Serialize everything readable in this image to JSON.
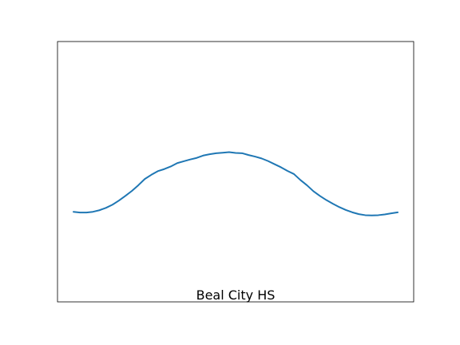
{
  "chart_data": {
    "type": "line",
    "title": "",
    "xlabel": "",
    "ylabel": "",
    "caption": "Beal City HS",
    "x_ticks_visible": false,
    "y_ticks_visible": false,
    "grid": false,
    "legend": "none",
    "xlim": [
      0,
      1
    ],
    "ylim": [
      0,
      1
    ],
    "series": [
      {
        "color": "#1f77b4",
        "x": [
          0.0,
          0.02,
          0.04,
          0.06,
          0.08,
          0.1,
          0.12,
          0.14,
          0.16,
          0.18,
          0.2,
          0.22,
          0.24,
          0.26,
          0.28,
          0.3,
          0.32,
          0.34,
          0.36,
          0.38,
          0.4,
          0.42,
          0.44,
          0.46,
          0.48,
          0.5,
          0.52,
          0.54,
          0.56,
          0.58,
          0.6,
          0.62,
          0.64,
          0.66,
          0.68,
          0.7,
          0.72,
          0.74,
          0.76,
          0.78,
          0.8,
          0.82,
          0.84,
          0.86,
          0.88,
          0.9,
          0.92,
          0.94,
          0.96,
          0.98,
          1.0
        ],
        "y": [
          0.346,
          0.343,
          0.343,
          0.346,
          0.352,
          0.361,
          0.373,
          0.389,
          0.407,
          0.426,
          0.448,
          0.472,
          0.488,
          0.502,
          0.51,
          0.52,
          0.533,
          0.54,
          0.547,
          0.553,
          0.562,
          0.567,
          0.571,
          0.573,
          0.575,
          0.572,
          0.571,
          0.564,
          0.558,
          0.551,
          0.541,
          0.529,
          0.517,
          0.503,
          0.491,
          0.468,
          0.448,
          0.425,
          0.407,
          0.391,
          0.377,
          0.364,
          0.353,
          0.344,
          0.337,
          0.333,
          0.332,
          0.333,
          0.336,
          0.34,
          0.344
        ]
      }
    ]
  }
}
